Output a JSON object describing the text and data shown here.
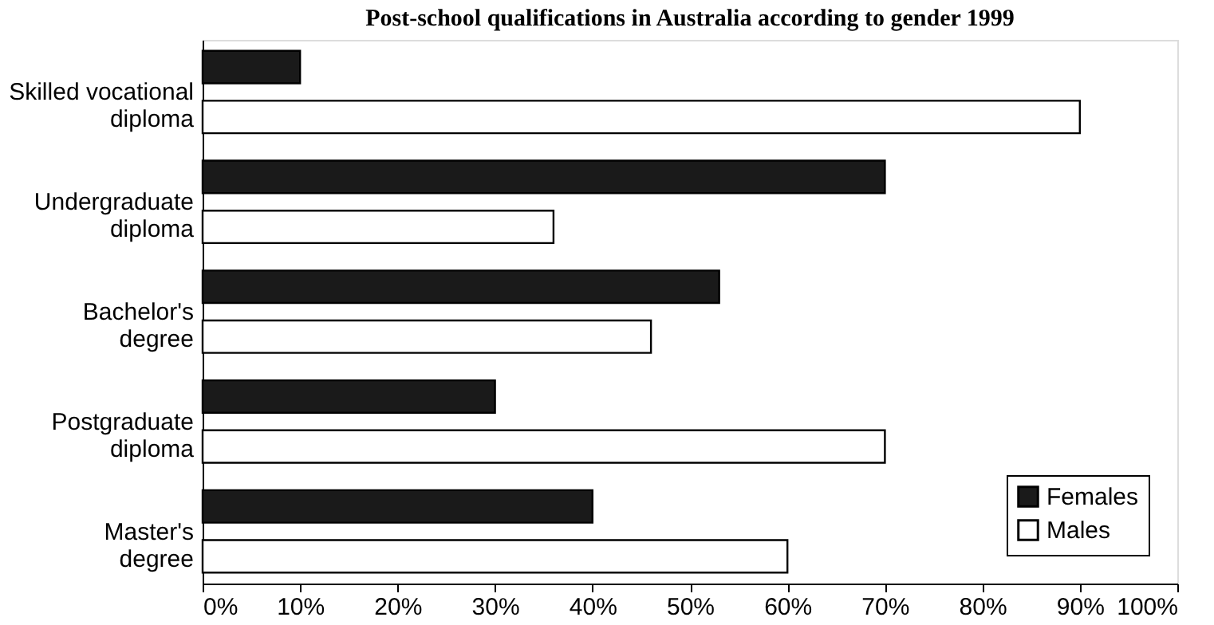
{
  "chart_data": {
    "type": "bar",
    "orientation": "horizontal",
    "title": "Post-school qualifications in Australia according to gender 1999",
    "categories": [
      "Skilled vocational diploma",
      "Undergraduate diploma",
      "Bachelor's degree",
      "Postgraduate diploma",
      "Master's degree"
    ],
    "series": [
      {
        "name": "Females",
        "color": "#1a1a1a",
        "values": [
          10,
          70,
          53,
          30,
          40
        ]
      },
      {
        "name": "Males",
        "color": "#ffffff",
        "values": [
          90,
          36,
          46,
          70,
          60
        ]
      }
    ],
    "xlim": [
      0,
      100
    ],
    "xticks": [
      {
        "value": 0,
        "label": "0%"
      },
      {
        "value": 10,
        "label": "10%"
      },
      {
        "value": 20,
        "label": "20%"
      },
      {
        "value": 30,
        "label": "30%"
      },
      {
        "value": 40,
        "label": "40%"
      },
      {
        "value": 50,
        "label": "50%"
      },
      {
        "value": 60,
        "label": "60%"
      },
      {
        "value": 70,
        "label": "70%"
      },
      {
        "value": 80,
        "label": "80%"
      },
      {
        "value": 90,
        "label": "90%"
      },
      {
        "value": 100,
        "label": "100%"
      }
    ],
    "grid": false,
    "legend": "bottom right"
  }
}
